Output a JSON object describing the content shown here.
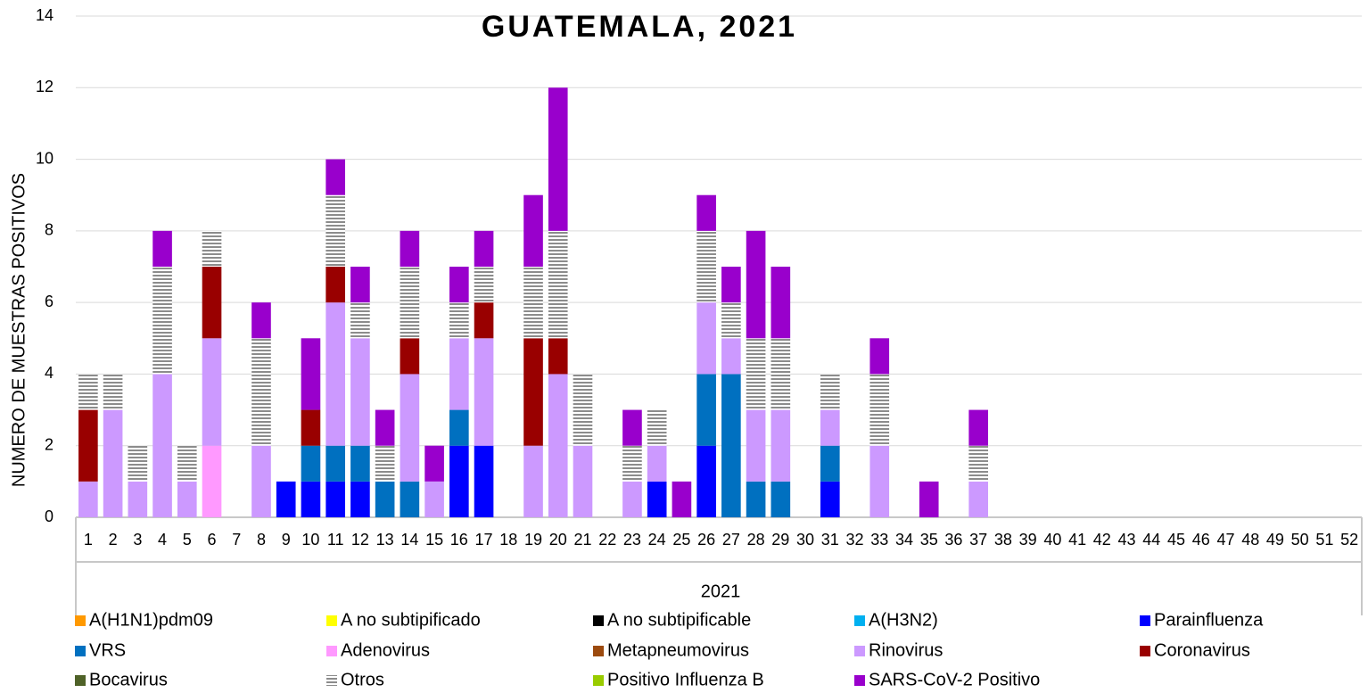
{
  "chart_data": {
    "type": "stacked_bar",
    "title": "GUATEMALA, 2021",
    "xlabel": "2021",
    "ylabel": "NUMERO DE MUESTRAS POSITIVOS",
    "categories": [
      "1",
      "2",
      "3",
      "4",
      "5",
      "6",
      "7",
      "8",
      "9",
      "10",
      "11",
      "12",
      "13",
      "14",
      "15",
      "16",
      "17",
      "18",
      "19",
      "20",
      "21",
      "22",
      "23",
      "24",
      "25",
      "26",
      "27",
      "28",
      "29",
      "30",
      "31",
      "32",
      "33",
      "34",
      "35",
      "36",
      "37",
      "38",
      "39",
      "40",
      "41",
      "42",
      "43",
      "44",
      "45",
      "46",
      "47",
      "48",
      "49",
      "50",
      "51",
      "52"
    ],
    "ylim": [
      0,
      14
    ],
    "yticks": [
      0,
      2,
      4,
      6,
      8,
      10,
      12,
      14
    ],
    "grid": true,
    "series": [
      {
        "name": "A(H1N1)pdm09",
        "color": "#ff9900",
        "values": [
          0,
          0,
          0,
          0,
          0,
          0,
          0,
          0,
          0,
          0,
          0,
          0,
          0,
          0,
          0,
          0,
          0,
          0,
          0,
          0,
          0,
          0,
          0,
          0,
          0,
          0,
          0,
          0,
          0,
          0,
          0,
          0,
          0,
          0,
          0,
          0,
          0,
          0,
          0,
          0,
          0,
          0,
          0,
          0,
          0,
          0,
          0,
          0,
          0,
          0,
          0,
          0
        ]
      },
      {
        "name": "A no subtipificado",
        "color": "#ffff00",
        "values": [
          0,
          0,
          0,
          0,
          0,
          0,
          0,
          0,
          0,
          0,
          0,
          0,
          0,
          0,
          0,
          0,
          0,
          0,
          0,
          0,
          0,
          0,
          0,
          0,
          0,
          0,
          0,
          0,
          0,
          0,
          0,
          0,
          0,
          0,
          0,
          0,
          0,
          0,
          0,
          0,
          0,
          0,
          0,
          0,
          0,
          0,
          0,
          0,
          0,
          0,
          0,
          0
        ]
      },
      {
        "name": "A no subtipificable",
        "color": "#000000",
        "values": [
          0,
          0,
          0,
          0,
          0,
          0,
          0,
          0,
          0,
          0,
          0,
          0,
          0,
          0,
          0,
          0,
          0,
          0,
          0,
          0,
          0,
          0,
          0,
          0,
          0,
          0,
          0,
          0,
          0,
          0,
          0,
          0,
          0,
          0,
          0,
          0,
          0,
          0,
          0,
          0,
          0,
          0,
          0,
          0,
          0,
          0,
          0,
          0,
          0,
          0,
          0,
          0
        ]
      },
      {
        "name": "A(H3N2)",
        "color": "#00b0f0",
        "values": [
          0,
          0,
          0,
          0,
          0,
          0,
          0,
          0,
          0,
          0,
          0,
          0,
          0,
          0,
          0,
          0,
          0,
          0,
          0,
          0,
          0,
          0,
          0,
          0,
          0,
          0,
          0,
          0,
          0,
          0,
          0,
          0,
          0,
          0,
          0,
          0,
          0,
          0,
          0,
          0,
          0,
          0,
          0,
          0,
          0,
          0,
          0,
          0,
          0,
          0,
          0,
          0
        ]
      },
      {
        "name": "Parainfluenza",
        "color": "#0000ff",
        "values": [
          0,
          0,
          0,
          0,
          0,
          0,
          0,
          0,
          1,
          1,
          1,
          1,
          0,
          0,
          0,
          2,
          2,
          0,
          0,
          0,
          0,
          0,
          0,
          1,
          0,
          2,
          0,
          0,
          0,
          0,
          1,
          0,
          0,
          0,
          0,
          0,
          0,
          0,
          0,
          0,
          0,
          0,
          0,
          0,
          0,
          0,
          0,
          0,
          0,
          0,
          0,
          0
        ]
      },
      {
        "name": "VRS",
        "color": "#0070c0",
        "values": [
          0,
          0,
          0,
          0,
          0,
          0,
          0,
          0,
          0,
          1,
          1,
          1,
          1,
          1,
          0,
          1,
          0,
          0,
          0,
          0,
          0,
          0,
          0,
          0,
          0,
          2,
          4,
          1,
          1,
          0,
          1,
          0,
          0,
          0,
          0,
          0,
          0,
          0,
          0,
          0,
          0,
          0,
          0,
          0,
          0,
          0,
          0,
          0,
          0,
          0,
          0,
          0
        ]
      },
      {
        "name": "Adenovirus",
        "color": "#ff99ff",
        "values": [
          0,
          0,
          0,
          0,
          0,
          2,
          0,
          0,
          0,
          0,
          0,
          0,
          0,
          0,
          0,
          0,
          0,
          0,
          0,
          0,
          0,
          0,
          0,
          0,
          0,
          0,
          0,
          0,
          0,
          0,
          0,
          0,
          0,
          0,
          0,
          0,
          0,
          0,
          0,
          0,
          0,
          0,
          0,
          0,
          0,
          0,
          0,
          0,
          0,
          0,
          0,
          0
        ]
      },
      {
        "name": "Metapneumovirus",
        "color": "#9c4a0e",
        "values": [
          0,
          0,
          0,
          0,
          0,
          0,
          0,
          0,
          0,
          0,
          0,
          0,
          0,
          0,
          0,
          0,
          0,
          0,
          0,
          0,
          0,
          0,
          0,
          0,
          0,
          0,
          0,
          0,
          0,
          0,
          0,
          0,
          0,
          0,
          0,
          0,
          0,
          0,
          0,
          0,
          0,
          0,
          0,
          0,
          0,
          0,
          0,
          0,
          0,
          0,
          0,
          0
        ]
      },
      {
        "name": "Rinovirus",
        "color": "#cc99ff",
        "values": [
          1,
          3,
          1,
          4,
          1,
          3,
          0,
          2,
          0,
          0,
          4,
          3,
          0,
          3,
          1,
          2,
          3,
          0,
          2,
          4,
          2,
          0,
          1,
          1,
          0,
          2,
          1,
          2,
          2,
          0,
          1,
          0,
          2,
          0,
          0,
          0,
          1,
          0,
          0,
          0,
          0,
          0,
          0,
          0,
          0,
          0,
          0,
          0,
          0,
          0,
          0,
          0
        ]
      },
      {
        "name": "Coronavirus",
        "color": "#990000",
        "values": [
          2,
          0,
          0,
          0,
          0,
          2,
          0,
          0,
          0,
          1,
          1,
          0,
          0,
          1,
          0,
          0,
          1,
          0,
          3,
          1,
          0,
          0,
          0,
          0,
          0,
          0,
          0,
          0,
          0,
          0,
          0,
          0,
          0,
          0,
          0,
          0,
          0,
          0,
          0,
          0,
          0,
          0,
          0,
          0,
          0,
          0,
          0,
          0,
          0,
          0,
          0,
          0
        ]
      },
      {
        "name": "Bocavirus",
        "color": "#4f6228",
        "values": [
          0,
          0,
          0,
          0,
          0,
          0,
          0,
          0,
          0,
          0,
          0,
          0,
          0,
          0,
          0,
          0,
          0,
          0,
          0,
          0,
          0,
          0,
          0,
          0,
          0,
          0,
          0,
          0,
          0,
          0,
          0,
          0,
          0,
          0,
          0,
          0,
          0,
          0,
          0,
          0,
          0,
          0,
          0,
          0,
          0,
          0,
          0,
          0,
          0,
          0,
          0,
          0
        ]
      },
      {
        "name": "Otros",
        "color": "#8c8c8c",
        "pattern": "horizontal-stripes",
        "values": [
          1,
          1,
          1,
          3,
          1,
          1,
          0,
          3,
          0,
          0,
          2,
          1,
          1,
          2,
          0,
          1,
          1,
          0,
          2,
          3,
          2,
          0,
          1,
          1,
          0,
          2,
          1,
          2,
          2,
          0,
          1,
          0,
          2,
          0,
          0,
          0,
          1,
          0,
          0,
          0,
          0,
          0,
          0,
          0,
          0,
          0,
          0,
          0,
          0,
          0,
          0,
          0
        ]
      },
      {
        "name": "Positivo Influenza  B",
        "color": "#99cc00",
        "values": [
          0,
          0,
          0,
          0,
          0,
          0,
          0,
          0,
          0,
          0,
          0,
          0,
          0,
          0,
          0,
          0,
          0,
          0,
          0,
          0,
          0,
          0,
          0,
          0,
          0,
          0,
          0,
          0,
          0,
          0,
          0,
          0,
          0,
          0,
          0,
          0,
          0,
          0,
          0,
          0,
          0,
          0,
          0,
          0,
          0,
          0,
          0,
          0,
          0,
          0,
          0,
          0
        ]
      },
      {
        "name": "SARS-CoV-2 Positivo",
        "color": "#9900cc",
        "values": [
          0,
          0,
          0,
          1,
          0,
          0,
          0,
          1,
          0,
          2,
          1,
          1,
          1,
          1,
          1,
          1,
          1,
          0,
          2,
          4,
          0,
          0,
          1,
          0,
          1,
          1,
          1,
          3,
          2,
          0,
          0,
          0,
          1,
          0,
          1,
          0,
          1,
          0,
          0,
          0,
          0,
          0,
          0,
          0,
          0,
          0,
          0,
          0,
          0,
          0,
          0,
          0
        ]
      }
    ]
  }
}
